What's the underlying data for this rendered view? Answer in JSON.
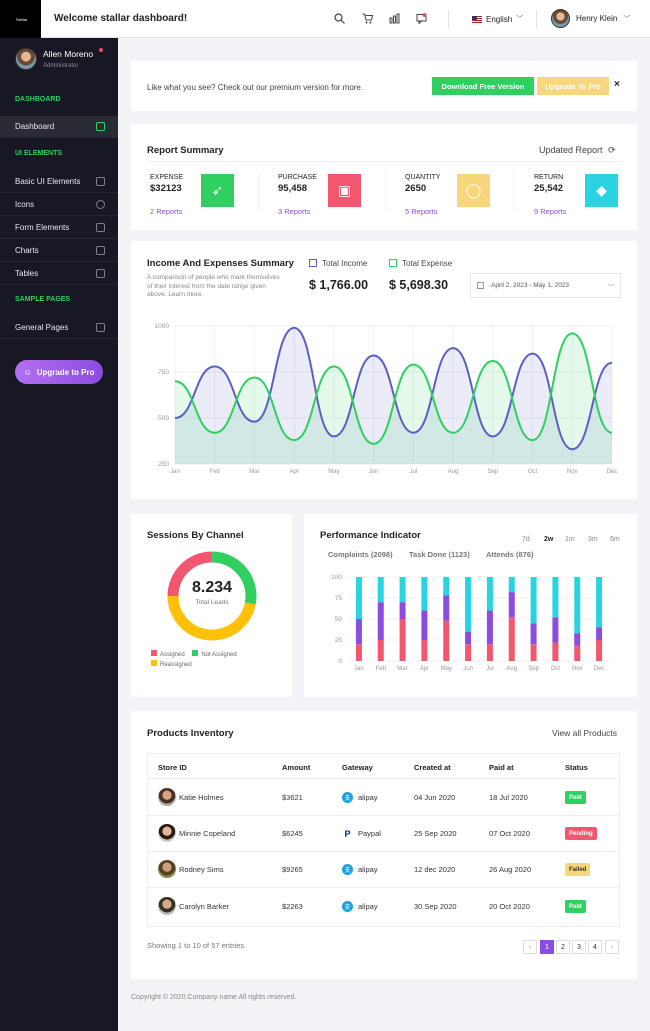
{
  "sidebar": {
    "logo": "Stellar",
    "user_name": "Allen Moreno",
    "user_role": "Administrator",
    "sections": [
      "DASHBOARD",
      "UI ELEMENTS",
      "SAMPLE PAGES"
    ],
    "items": [
      {
        "label": "Dashboard",
        "icon": "monitor-icon"
      },
      {
        "label": "Basic UI Elements",
        "icon": "layers-icon"
      },
      {
        "label": "Icons",
        "icon": "globe-icon"
      },
      {
        "label": "Form Elements",
        "icon": "form-icon"
      },
      {
        "label": "Charts",
        "icon": "bar-chart-icon"
      },
      {
        "label": "Tables",
        "icon": "grid-icon"
      },
      {
        "label": "General Pages",
        "icon": "file-icon"
      }
    ],
    "upgrade_label": "Upgrade to Pro"
  },
  "topbar": {
    "title": "Welcome stallar dashboard!",
    "language": "English",
    "user": "Henry Klein"
  },
  "banner": {
    "text": "Like what you see? Check out our premium version for more.",
    "download_label": "Download Free Version",
    "upgrade_label": "Upgrade To Pro",
    "close": "×"
  },
  "report": {
    "title": "Report Summary",
    "updated": "Updated Report",
    "items": [
      {
        "label": "EXPENSE",
        "value": "$32123",
        "link": "2 Reports",
        "color": "#2fd05f",
        "icon": "rocket-icon",
        "glyph": "➶"
      },
      {
        "label": "PURCHASE",
        "value": "95,458",
        "link": "3 Reports",
        "color": "#f2576f",
        "icon": "briefcase-icon",
        "glyph": "▣"
      },
      {
        "label": "QUANTITY",
        "value": "2650",
        "link": "5 Reports",
        "color": "#f8d67b",
        "icon": "lightbulb-icon",
        "glyph": "◯"
      },
      {
        "label": "RETURN",
        "value": "25,542",
        "link": "9 Reports",
        "color": "#2ad3e0",
        "icon": "diamond-icon",
        "glyph": "◆"
      }
    ]
  },
  "income": {
    "title": "Income And Expenses Summary",
    "desc": [
      "A comparison of people who mark themselves",
      "of their interest from the date range given",
      "above. Learn more."
    ],
    "legend_income": "Total Income",
    "legend_expense": "Total Expense",
    "income_value": "$ 1,766.00",
    "expense_value": "$ 5,698.30",
    "date_range": "April 2, 2023 - May 1, 2023"
  },
  "sessions": {
    "title": "Sessions By Channel",
    "value": "8.234",
    "label": "Total Leads",
    "legend": [
      "Assigned",
      "Not Assigned",
      "Reassigned"
    ]
  },
  "performance": {
    "title": "Performance Indicator",
    "tabs": [
      "7d",
      "2w",
      "1m",
      "3m",
      "6m"
    ],
    "active_tab": "2w",
    "subheads": [
      "Complaints (2098)",
      "Task Done (1123)",
      "Attends (876)"
    ]
  },
  "chart_data": [
    {
      "type": "area",
      "categories": [
        "Jan",
        "Feb",
        "Mar",
        "Apr",
        "May",
        "Jun",
        "Jul",
        "Aug",
        "Sep",
        "Oct",
        "Nov",
        "Dec"
      ],
      "ylim": [
        250,
        1000
      ],
      "yticks": [
        1000,
        750,
        500,
        250
      ],
      "series": [
        {
          "name": "Total Income",
          "color": "#5b5fc7",
          "values": [
            500,
            780,
            480,
            990,
            400,
            840,
            420,
            880,
            400,
            850,
            330,
            800
          ]
        },
        {
          "name": "Total Expense",
          "color": "#2fd05f",
          "values": [
            700,
            420,
            720,
            380,
            780,
            360,
            790,
            420,
            810,
            380,
            960,
            420
          ]
        }
      ]
    },
    {
      "type": "pie",
      "slices": [
        {
          "name": "Assigned",
          "value": 25,
          "color": "#f2576f"
        },
        {
          "name": "Not Assigned",
          "value": 28,
          "color": "#2fd05f"
        },
        {
          "name": "Reassigned",
          "value": 47,
          "color": "#ffc107"
        }
      ]
    },
    {
      "type": "bar",
      "categories": [
        "Jan",
        "Feb",
        "Mar",
        "Apr",
        "May",
        "Jun",
        "Jul",
        "Aug",
        "Sep",
        "Oct",
        "Nov",
        "Dec"
      ],
      "ylim": [
        0,
        100
      ],
      "yticks": [
        100,
        75,
        50,
        25,
        0
      ],
      "series": [
        {
          "color": "#f2576f",
          "values": [
            20,
            25,
            50,
            25,
            48,
            20,
            20,
            52,
            20,
            22,
            18,
            25
          ]
        },
        {
          "color": "#8a4de0",
          "values": [
            30,
            45,
            20,
            35,
            30,
            15,
            40,
            30,
            25,
            30,
            15,
            15
          ]
        },
        {
          "color": "#2ad3e0",
          "values": [
            50,
            30,
            30,
            40,
            22,
            65,
            40,
            18,
            55,
            48,
            67,
            60
          ]
        }
      ]
    }
  ],
  "inventory": {
    "title": "Products Inventory",
    "view_all": "View all Products",
    "columns": [
      "Store ID",
      "Amount",
      "Gateway",
      "Created at",
      "Paid at",
      "Status"
    ],
    "rows": [
      {
        "name": "Katie Holmes",
        "amount": "$3621",
        "gateway": "alipay",
        "gw_icon": "alipay-icon",
        "created": "04 Jun 2020",
        "paid": "18 Jul 2020",
        "status": "Paid",
        "status_color": "#2fd05f"
      },
      {
        "name": "Minnie Copeland",
        "amount": "$6245",
        "gateway": "Paypal",
        "gw_icon": "paypal-icon",
        "created": "25 Sep 2020",
        "paid": "07 Oct 2020",
        "status": "Pending",
        "status_color": "#f2576f"
      },
      {
        "name": "Rodney Sims",
        "amount": "$9265",
        "gateway": "alipay",
        "gw_icon": "alipay-icon",
        "created": "12 dec 2020",
        "paid": "26 Aug 2020",
        "status": "Failed",
        "status_color": "#f8d67b"
      },
      {
        "name": "Carolyn Barker",
        "amount": "$2263",
        "gateway": "alipay",
        "gw_icon": "alipay-icon",
        "created": "30 Sep 2020",
        "paid": "20 Oct 2020",
        "status": "Paid",
        "status_color": "#2fd05f"
      }
    ],
    "showing": "Showing 1 to 10 of 57 entries",
    "pages": [
      "1",
      "2",
      "3",
      "4"
    ]
  },
  "footer": "Copyright © 2020.Company name All rights reserved."
}
